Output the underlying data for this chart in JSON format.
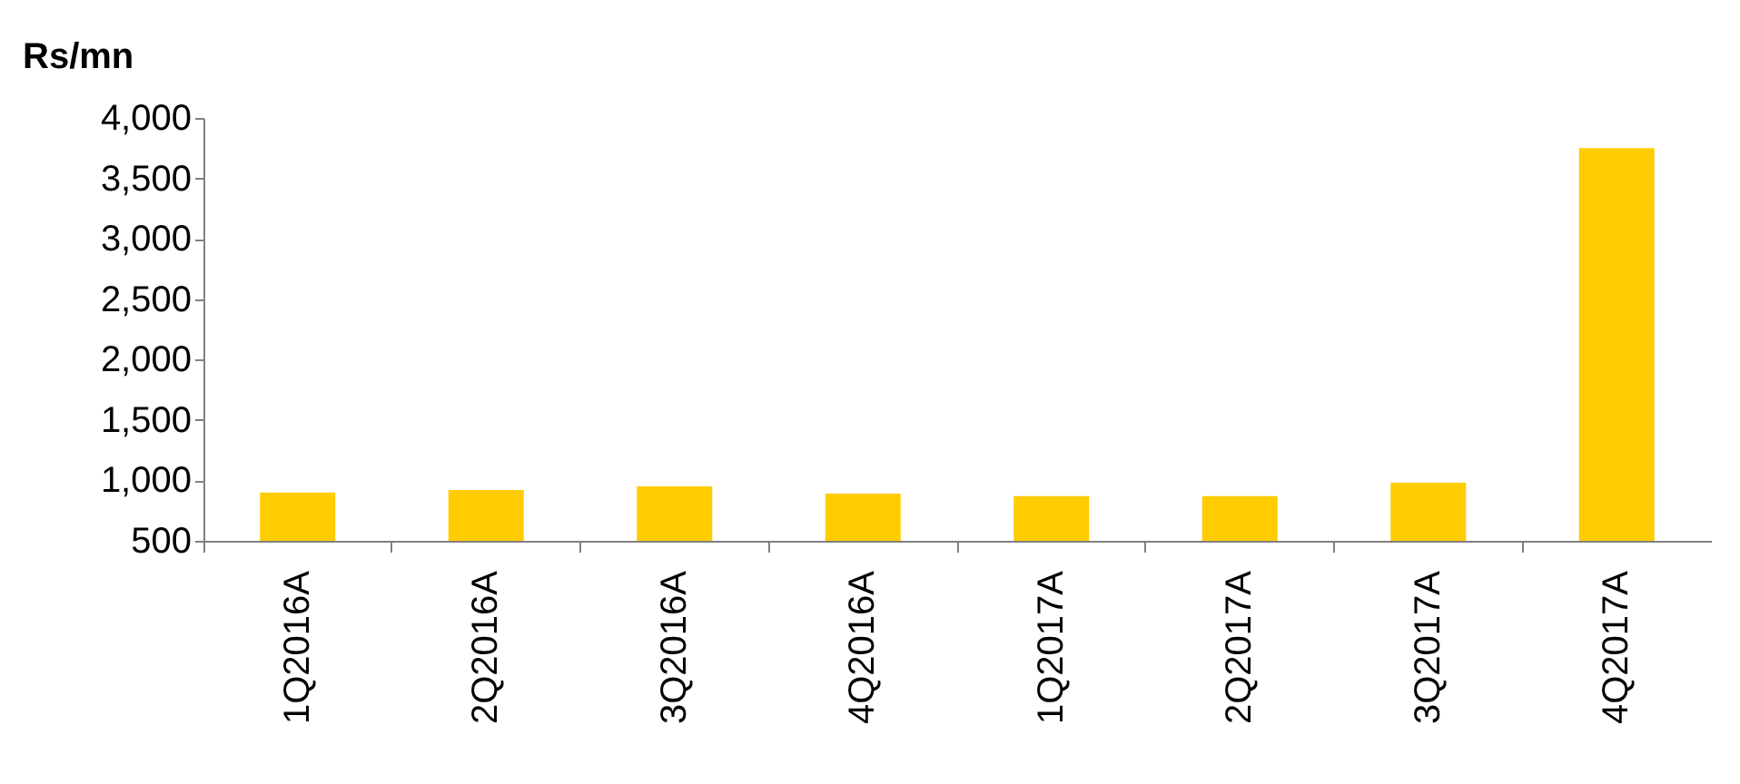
{
  "chart_data": {
    "type": "bar",
    "ylabel": "Rs/mn",
    "categories": [
      "1Q2016A",
      "2Q2016A",
      "3Q2016A",
      "4Q2016A",
      "1Q2017A",
      "2Q2017A",
      "3Q2017A",
      "4Q2017A"
    ],
    "values": [
      900,
      920,
      950,
      890,
      870,
      870,
      980,
      3750
    ],
    "color": "#ffcc00",
    "ylim": [
      500,
      4000
    ],
    "yticks": [
      500,
      {
        "value": 1000,
        "label": "1,000"
      },
      {
        "value": 1500,
        "label": "1,500"
      },
      {
        "value": 2000,
        "label": "2,000"
      },
      {
        "value": 2500,
        "label": "2,500"
      },
      {
        "value": 3000,
        "label": "3,000"
      },
      {
        "value": 3500,
        "label": "3,500"
      },
      {
        "value": 4000,
        "label": "4,000"
      }
    ],
    "grid": false
  }
}
